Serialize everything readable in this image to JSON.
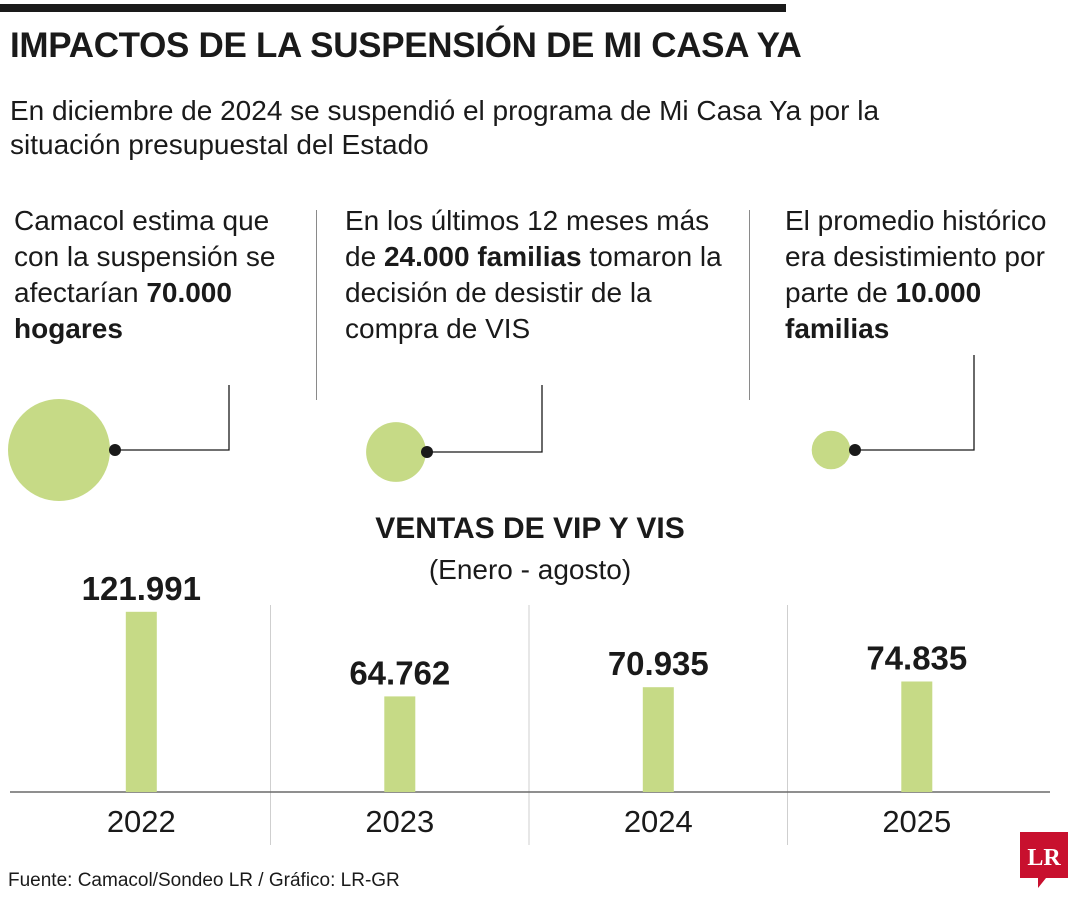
{
  "header": {
    "title": "IMPACTOS DE LA SUSPENSIÓN DE MI CASA YA",
    "subtitle": "En diciembre de 2024 se suspendió el programa de Mi Casa Ya por la situación presupuestal del Estado"
  },
  "facts": [
    {
      "before": "Camacol estima que con la suspensión se afectarían ",
      "highlight": "70.000 hogares",
      "after": "",
      "value": 70000
    },
    {
      "before": "En los últimos 12 meses más de ",
      "highlight": "24.000 familias",
      "after": " tomaron la decisión de desistir de la compra de VIS",
      "value": 24000
    },
    {
      "before": "El promedio histórico era desistimiento por parte de ",
      "highlight": "10.000 familias",
      "after": "",
      "value": 10000
    }
  ],
  "chart_data": {
    "type": "bar",
    "title": "VENTAS DE VIP Y VIS",
    "subtitle": "(Enero - agosto)",
    "categories": [
      "2022",
      "2023",
      "2024",
      "2025"
    ],
    "values": [
      121991,
      64762,
      70935,
      74835
    ],
    "value_labels": [
      "121.991",
      "64.762",
      "70.935",
      "74.835"
    ],
    "ylim": [
      0,
      130000
    ],
    "grid": false,
    "bar_color": "#c6da86"
  },
  "colors": {
    "accent": "#c6da86",
    "text": "#1a1a1a",
    "logo_red": "#c8102e"
  },
  "footer": {
    "source": "Fuente: Camacol/Sondeo LR / Gráfico: LR-GR"
  },
  "logo": {
    "text": "LR"
  }
}
